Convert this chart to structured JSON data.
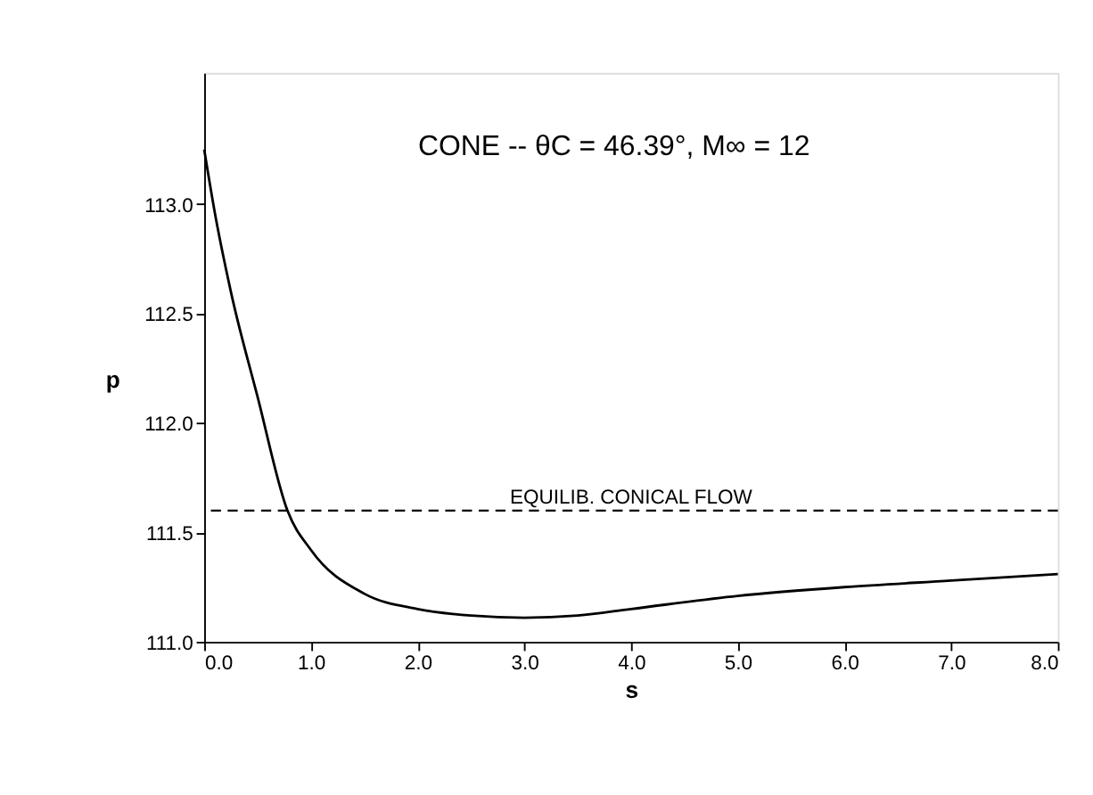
{
  "chart_data": {
    "type": "line",
    "title": "CONE -- θC = 46.39°, M∞ = 12",
    "xlabel": "s",
    "ylabel": "p",
    "x": [
      0,
      0.1,
      0.25,
      0.5,
      0.78,
      1.0,
      1.5,
      2.0,
      2.5,
      3.0,
      3.5,
      4.0,
      5.0,
      6.0,
      7.0,
      8.0
    ],
    "series": [
      {
        "color": "#000000",
        "values": [
          113.25,
          112.96,
          112.6,
          112.12,
          111.6,
          111.42,
          111.22,
          111.15,
          111.12,
          111.11,
          111.12,
          111.15,
          111.21,
          111.25,
          111.28,
          111.31
        ]
      }
    ],
    "xlim": [
      0,
      8
    ],
    "ylim": [
      111,
      113.6
    ],
    "xticks": [
      {
        "value": 0,
        "label": "0.0"
      },
      {
        "value": 1,
        "label": "1.0"
      },
      {
        "value": 2,
        "label": "2.0"
      },
      {
        "value": 3,
        "label": "3.0"
      },
      {
        "value": 4,
        "label": "4.0"
      },
      {
        "value": 5,
        "label": "5.0"
      },
      {
        "value": 6,
        "label": "6.0"
      },
      {
        "value": 7,
        "label": "7.0"
      },
      {
        "value": 8,
        "label": "8.0"
      }
    ],
    "yticks": [
      {
        "value": 111,
        "label": "111.0"
      },
      111.5,
      {
        "value": 112,
        "label": "112.0"
      },
      112.5,
      {
        "value": 113,
        "label": "113.0"
      }
    ],
    "ref_lines": [
      {
        "axis": "y",
        "value": 111.6,
        "label": "EQUILIB. CONICAL FLOW",
        "color": "#000000",
        "line_style": "dashed"
      }
    ],
    "grid": false,
    "marker": "none",
    "line_style": "solid"
  }
}
